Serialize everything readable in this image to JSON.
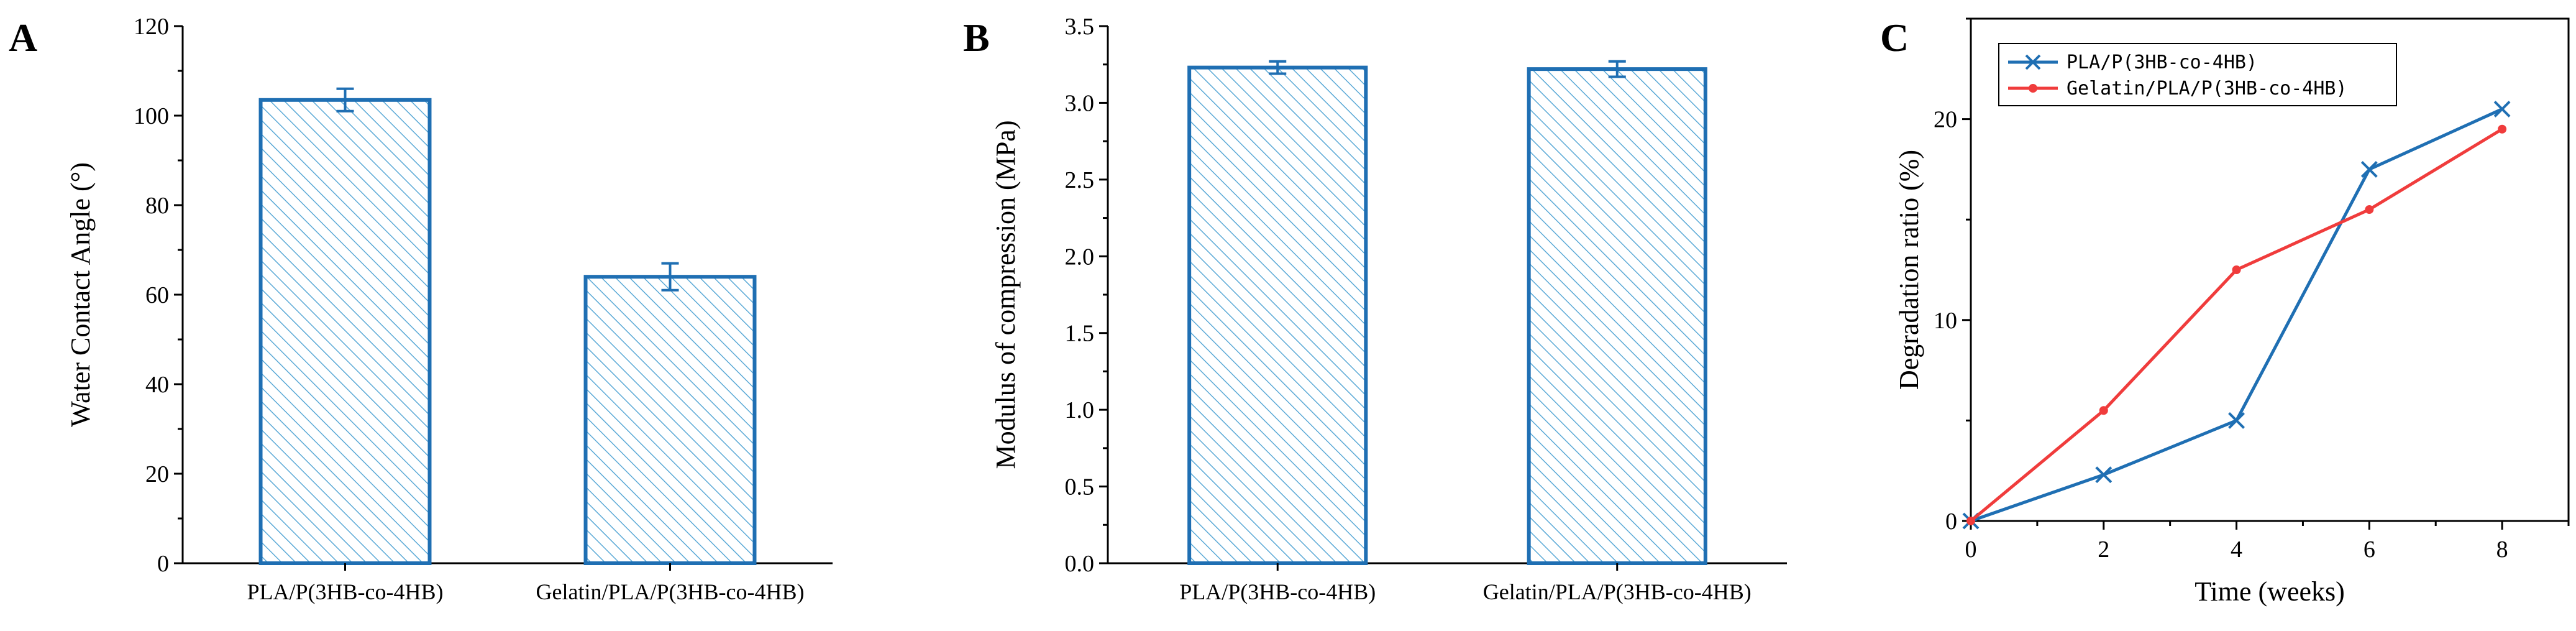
{
  "chart_data": [
    {
      "panel": "A",
      "type": "bar",
      "ylabel": "Water Contact Angle (°)",
      "xlabel": "",
      "categories": [
        "PLA/P(3HB-co-4HB)",
        "Gelatin/PLA/P(3HB-co-4HB)"
      ],
      "values": [
        103.5,
        64.0
      ],
      "errors": [
        2.5,
        3.0
      ],
      "ylim": [
        0,
        120
      ],
      "yticks": [
        0,
        20,
        40,
        60,
        80,
        100,
        120
      ],
      "bar_color": "#1f6fb3",
      "fill_pattern": "diagonal-hatch"
    },
    {
      "panel": "B",
      "type": "bar",
      "ylabel": "Modulus of compression (MPa)",
      "xlabel": "",
      "categories": [
        "PLA/P(3HB-co-4HB)",
        "Gelatin/PLA/P(3HB-co-4HB)"
      ],
      "values": [
        3.23,
        3.22
      ],
      "errors": [
        0.04,
        0.05
      ],
      "ylim": [
        0,
        3.5
      ],
      "yticks": [
        0.0,
        0.5,
        1.0,
        1.5,
        2.0,
        2.5,
        3.0,
        3.5
      ],
      "bar_color": "#1f6fb3",
      "fill_pattern": "diagonal-hatch"
    },
    {
      "panel": "C",
      "type": "line",
      "xlabel": "Time (weeks)",
      "ylabel": "Degradation ratio (%)",
      "x": [
        0,
        2,
        4,
        6,
        8
      ],
      "xlim": [
        0,
        9
      ],
      "ylim": [
        0,
        25
      ],
      "xticks": [
        0,
        2,
        4,
        6,
        8
      ],
      "yticks": [
        0,
        10,
        20
      ],
      "legend_position": "top-left",
      "series": [
        {
          "name": "PLA/P(3HB-co-4HB)",
          "values": [
            0,
            2.3,
            5.0,
            17.5,
            20.5
          ],
          "color": "#1f6fb3",
          "marker": "x"
        },
        {
          "name": "Gelatin/PLA/P(3HB-co-4HB)",
          "values": [
            0,
            5.5,
            12.5,
            15.5,
            19.5
          ],
          "color": "#f03c3c",
          "marker": "dot"
        }
      ]
    }
  ]
}
